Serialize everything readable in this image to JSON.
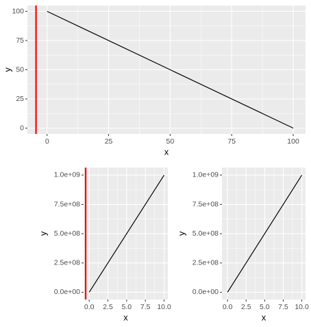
{
  "chart_data": [
    {
      "type": "line",
      "x_label": "x",
      "y_label": "y",
      "x": [
        0,
        100
      ],
      "values": [
        100,
        0
      ],
      "color": "#000000",
      "xlim": [
        -8,
        105
      ],
      "ylim": [
        -5,
        105
      ],
      "xticks": [
        0,
        25,
        50,
        75,
        100
      ],
      "yticks": [
        0,
        25,
        50,
        75,
        100
      ],
      "xticks_minor": [
        12.5,
        37.5,
        62.5,
        87.5
      ],
      "yticks_minor": [
        12.5,
        37.5,
        62.5,
        87.5
      ],
      "vlines": [
        {
          "x": -4.5,
          "color": "#ff0000"
        }
      ],
      "grid": true
    },
    {
      "type": "line",
      "x_label": "x",
      "y_label": "y",
      "x": [
        0,
        10
      ],
      "values": [
        0,
        1000000000
      ],
      "color": "#000000",
      "xlim": [
        -0.75,
        10.5
      ],
      "ylim": [
        -62000000,
        1064000000
      ],
      "xticks": [
        {
          "value": 0,
          "label": "0.0"
        },
        2.5,
        {
          "value": 5,
          "label": "5.0"
        },
        7.5,
        {
          "value": 10,
          "label": "10.0"
        }
      ],
      "yticks": [
        {
          "value": 0,
          "label": "0.0e+00"
        },
        {
          "value": 250000000,
          "label": "2.5e+08"
        },
        {
          "value": 500000000,
          "label": "5.0e+08"
        },
        {
          "value": 750000000,
          "label": "7.5e+08"
        },
        {
          "value": 1000000000,
          "label": "1.0e+09"
        }
      ],
      "xticks_minor": [
        1.25,
        3.75,
        6.25,
        8.75
      ],
      "yticks_minor": [
        125000000,
        375000000,
        625000000,
        875000000
      ],
      "vlines": [
        {
          "x": -0.47,
          "color": "#ff0000"
        }
      ],
      "grid": true
    },
    {
      "type": "line",
      "x_label": "x",
      "y_label": "y",
      "x": [
        0,
        10
      ],
      "values": [
        0,
        1000000000
      ],
      "color": "#000000",
      "xlim": [
        -0.75,
        10.5
      ],
      "ylim": [
        -62000000,
        1064000000
      ],
      "xticks": [
        {
          "value": 0,
          "label": "0.0"
        },
        2.5,
        {
          "value": 5,
          "label": "5.0"
        },
        7.5,
        {
          "value": 10,
          "label": "10.0"
        }
      ],
      "yticks": [
        {
          "value": 0,
          "label": "0.0e+00"
        },
        {
          "value": 250000000,
          "label": "2.5e+08"
        },
        {
          "value": 500000000,
          "label": "5.0e+08"
        },
        {
          "value": 750000000,
          "label": "7.5e+08"
        },
        {
          "value": 1000000000,
          "label": "1.0e+09"
        }
      ],
      "xticks_minor": [
        1.25,
        3.75,
        6.25,
        8.75
      ],
      "yticks_minor": [
        125000000,
        375000000,
        625000000,
        875000000
      ],
      "grid": true
    }
  ]
}
